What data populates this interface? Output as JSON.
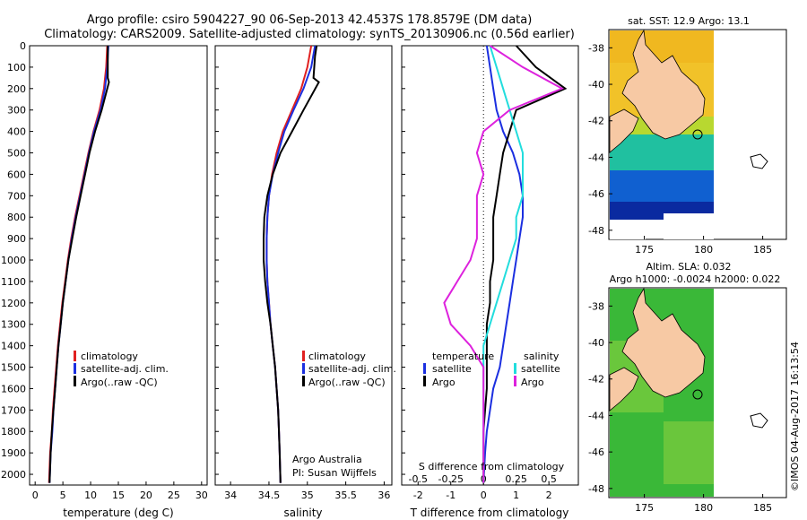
{
  "header": {
    "line1": "Argo profile: csiro 5904227_90 06-Sep-2013 42.4537S 178.8579E (DM data)",
    "line2": "Climatology: CARS2009. Satellite-adjusted climatology: synTS_20130906.nc (0.56d earlier)"
  },
  "panels": {
    "temperature": {
      "xlabel": "temperature (deg C)",
      "xticks": [
        "0",
        "5",
        "10",
        "15",
        "20",
        "25",
        "30"
      ]
    },
    "salinity": {
      "xlabel": "salinity",
      "xticks": [
        "34",
        "34.5",
        "35",
        "35.5",
        "36"
      ],
      "credit1": "Argo Australia",
      "credit2": "PI: Susan Wijffels"
    },
    "difference": {
      "xlabel": "T difference from climatology",
      "xticks": [
        "-2",
        "-1",
        "0",
        "1",
        "2"
      ],
      "s_label": "S difference from climatology",
      "s_ticks": [
        "-0.5",
        "-0.25",
        "0",
        "0.25",
        "0.5"
      ]
    }
  },
  "legend_temp": [
    "climatology",
    "satellite-adj. clim.",
    "Argo(..raw -QC)"
  ],
  "legend_sal": [
    "climatology",
    "satellite-adj. clim.",
    "Argo(..raw -QC)"
  ],
  "legend_diff": {
    "temp_title": "temperature",
    "sal_title": "salinity",
    "temp_items": [
      "satellite",
      "Argo"
    ],
    "sal_items": [
      "satellite",
      "Argo"
    ]
  },
  "depth_ticks": [
    "0",
    "100",
    "200",
    "300",
    "400",
    "500",
    "600",
    "700",
    "800",
    "900",
    "1000",
    "1100",
    "1200",
    "1300",
    "1400",
    "1500",
    "1600",
    "1700",
    "1800",
    "1900",
    "2000"
  ],
  "maps": {
    "sst_title": "sat. SST: 12.9 Argo: 13.1",
    "sla_title1": "Altim. SLA: 0.032",
    "sla_title2": "Argo h1000: -0.0024 h2000: 0.022",
    "lat_ticks": [
      "-38",
      "-40",
      "-42",
      "-44",
      "-46",
      "-48"
    ],
    "lon_ticks": [
      "175",
      "180",
      "185"
    ],
    "footer": "©IMOS 04-Aug-2017 16:13:54"
  },
  "colors": {
    "climatology": "#e02020",
    "satellite": "#1b2fe0",
    "argo": "#000000",
    "sal_satellite": "#22dddd",
    "sal_argo": "#dd22dd",
    "land": "#f7c9a4"
  },
  "chart_data": [
    {
      "type": "line",
      "title": "",
      "xlabel": "temperature (deg C)",
      "ylabel": "",
      "xlim": [
        -1,
        31
      ],
      "ylim": [
        2050,
        0
      ],
      "series": [
        {
          "name": "climatology",
          "x": [
            13.0,
            12.8,
            12.4,
            11.6,
            10.5,
            9.6,
            8.8,
            8.0,
            7.2,
            6.5,
            5.9,
            5.4,
            4.9,
            4.5,
            4.1,
            3.8,
            3.5,
            3.2,
            3.0,
            2.7,
            2.5
          ],
          "y": [
            0,
            100,
            200,
            300,
            400,
            500,
            600,
            700,
            800,
            900,
            1000,
            1100,
            1200,
            1300,
            1400,
            1500,
            1600,
            1700,
            1800,
            1900,
            2040
          ]
        },
        {
          "name": "satellite-adj. clim.",
          "x": [
            13.2,
            13.0,
            12.6,
            11.8,
            10.6,
            9.7,
            8.9,
            8.1,
            7.3,
            6.6,
            6.0,
            5.5,
            5.0,
            4.6,
            4.2,
            3.9,
            3.6,
            3.3,
            3.1,
            2.8,
            2.6
          ],
          "y": [
            0,
            100,
            200,
            300,
            400,
            500,
            600,
            700,
            800,
            900,
            1000,
            1100,
            1200,
            1300,
            1400,
            1500,
            1600,
            1700,
            1800,
            1900,
            2040
          ]
        },
        {
          "name": "Argo(..raw -QC)",
          "x": [
            13.1,
            13.1,
            13.1,
            13.3,
            12.0,
            10.8,
            9.8,
            9.0,
            8.2,
            7.4,
            6.7,
            6.0,
            5.5,
            5.0,
            4.6,
            4.2,
            3.9,
            3.6,
            3.3,
            3.0,
            2.8,
            2.6
          ],
          "y": [
            0,
            50,
            150,
            170,
            300,
            400,
            500,
            600,
            700,
            800,
            900,
            1000,
            1100,
            1200,
            1300,
            1400,
            1500,
            1600,
            1700,
            1800,
            1900,
            2040
          ]
        }
      ]
    },
    {
      "type": "line",
      "title": "",
      "xlabel": "salinity",
      "ylabel": "",
      "xlim": [
        33.8,
        36.1
      ],
      "ylim": [
        2050,
        0
      ],
      "series": [
        {
          "name": "climatology",
          "x": [
            35.05,
            35.0,
            34.92,
            34.8,
            34.68,
            34.6,
            34.54,
            34.5,
            34.48,
            34.47,
            34.47,
            34.48,
            34.5,
            34.52,
            34.55,
            34.58,
            34.6,
            34.62,
            34.63,
            34.64,
            34.65
          ],
          "y": [
            0,
            100,
            200,
            300,
            400,
            500,
            600,
            700,
            800,
            900,
            1000,
            1100,
            1200,
            1300,
            1400,
            1500,
            1600,
            1700,
            1800,
            1900,
            2040
          ]
        },
        {
          "name": "satellite-adj. clim.",
          "x": [
            35.1,
            35.05,
            34.95,
            34.82,
            34.7,
            34.62,
            34.55,
            34.5,
            34.48,
            34.47,
            34.47,
            34.48,
            34.5,
            34.52,
            34.55,
            34.58,
            34.6,
            34.62,
            34.63,
            34.64,
            34.65
          ],
          "y": [
            0,
            100,
            200,
            300,
            400,
            500,
            600,
            700,
            800,
            900,
            1000,
            1100,
            1200,
            1300,
            1400,
            1500,
            1600,
            1700,
            1800,
            1900,
            2040
          ]
        },
        {
          "name": "Argo(..raw -QC)",
          "x": [
            35.12,
            35.1,
            35.08,
            35.15,
            34.95,
            34.8,
            34.65,
            34.55,
            34.48,
            34.44,
            34.43,
            34.43,
            34.45,
            34.48,
            34.52,
            34.55,
            34.58,
            34.6,
            34.62,
            34.63,
            34.64,
            34.65
          ],
          "y": [
            0,
            50,
            150,
            170,
            300,
            400,
            500,
            600,
            700,
            800,
            900,
            1000,
            1100,
            1200,
            1300,
            1400,
            1500,
            1600,
            1700,
            1800,
            1900,
            2040
          ]
        }
      ]
    },
    {
      "type": "line",
      "title": "",
      "xlabel": "T difference from climatology",
      "ylabel": "",
      "xlim": [
        -2.5,
        2.9
      ],
      "ylim": [
        2050,
        0
      ],
      "series": [
        {
          "name": "temperature satellite",
          "x": [
            0.1,
            0.2,
            0.3,
            0.4,
            0.6,
            0.9,
            1.1,
            1.2,
            1.2,
            1.1,
            1.0,
            0.9,
            0.8,
            0.7,
            0.6,
            0.5,
            0.3,
            0.2,
            0.1,
            0.05,
            0.0
          ],
          "y": [
            0,
            100,
            200,
            300,
            400,
            500,
            600,
            700,
            800,
            900,
            1000,
            1100,
            1200,
            1300,
            1400,
            1500,
            1600,
            1700,
            1800,
            1900,
            2040
          ]
        },
        {
          "name": "temperature Argo",
          "x": [
            1.0,
            1.6,
            2.5,
            1.0,
            0.8,
            0.6,
            0.5,
            0.4,
            0.3,
            0.3,
            0.3,
            0.2,
            0.2,
            0.1,
            0.1,
            0.1,
            0.1,
            0.05,
            0.0,
            0.0,
            0.0
          ],
          "y": [
            0,
            100,
            200,
            300,
            400,
            500,
            600,
            700,
            800,
            900,
            1000,
            1100,
            1200,
            1300,
            1400,
            1500,
            1600,
            1700,
            1800,
            1900,
            2040
          ]
        },
        {
          "name": "salinity satellite",
          "x": [
            0.05,
            0.1,
            0.15,
            0.2,
            0.25,
            0.3,
            0.3,
            0.3,
            0.25,
            0.25,
            0.2,
            0.15,
            0.1,
            0.05,
            0.0,
            0.0,
            0.0,
            0.0,
            0.0,
            0.0,
            0.0
          ],
          "y": [
            0,
            100,
            200,
            300,
            400,
            500,
            600,
            700,
            800,
            900,
            1000,
            1100,
            1200,
            1300,
            1400,
            1500,
            1600,
            1700,
            1800,
            1900,
            2040
          ]
        },
        {
          "name": "salinity Argo",
          "x": [
            0.05,
            0.3,
            0.6,
            0.2,
            0.0,
            -0.05,
            0.0,
            -0.05,
            -0.05,
            -0.05,
            -0.1,
            -0.2,
            -0.3,
            -0.25,
            -0.1,
            0.0,
            0.0,
            0.0,
            0.0,
            0.0,
            0.0
          ],
          "y": [
            0,
            100,
            200,
            300,
            400,
            500,
            600,
            700,
            800,
            900,
            1000,
            1100,
            1200,
            1300,
            1400,
            1500,
            1600,
            1700,
            1800,
            1900,
            2040
          ]
        }
      ]
    }
  ]
}
